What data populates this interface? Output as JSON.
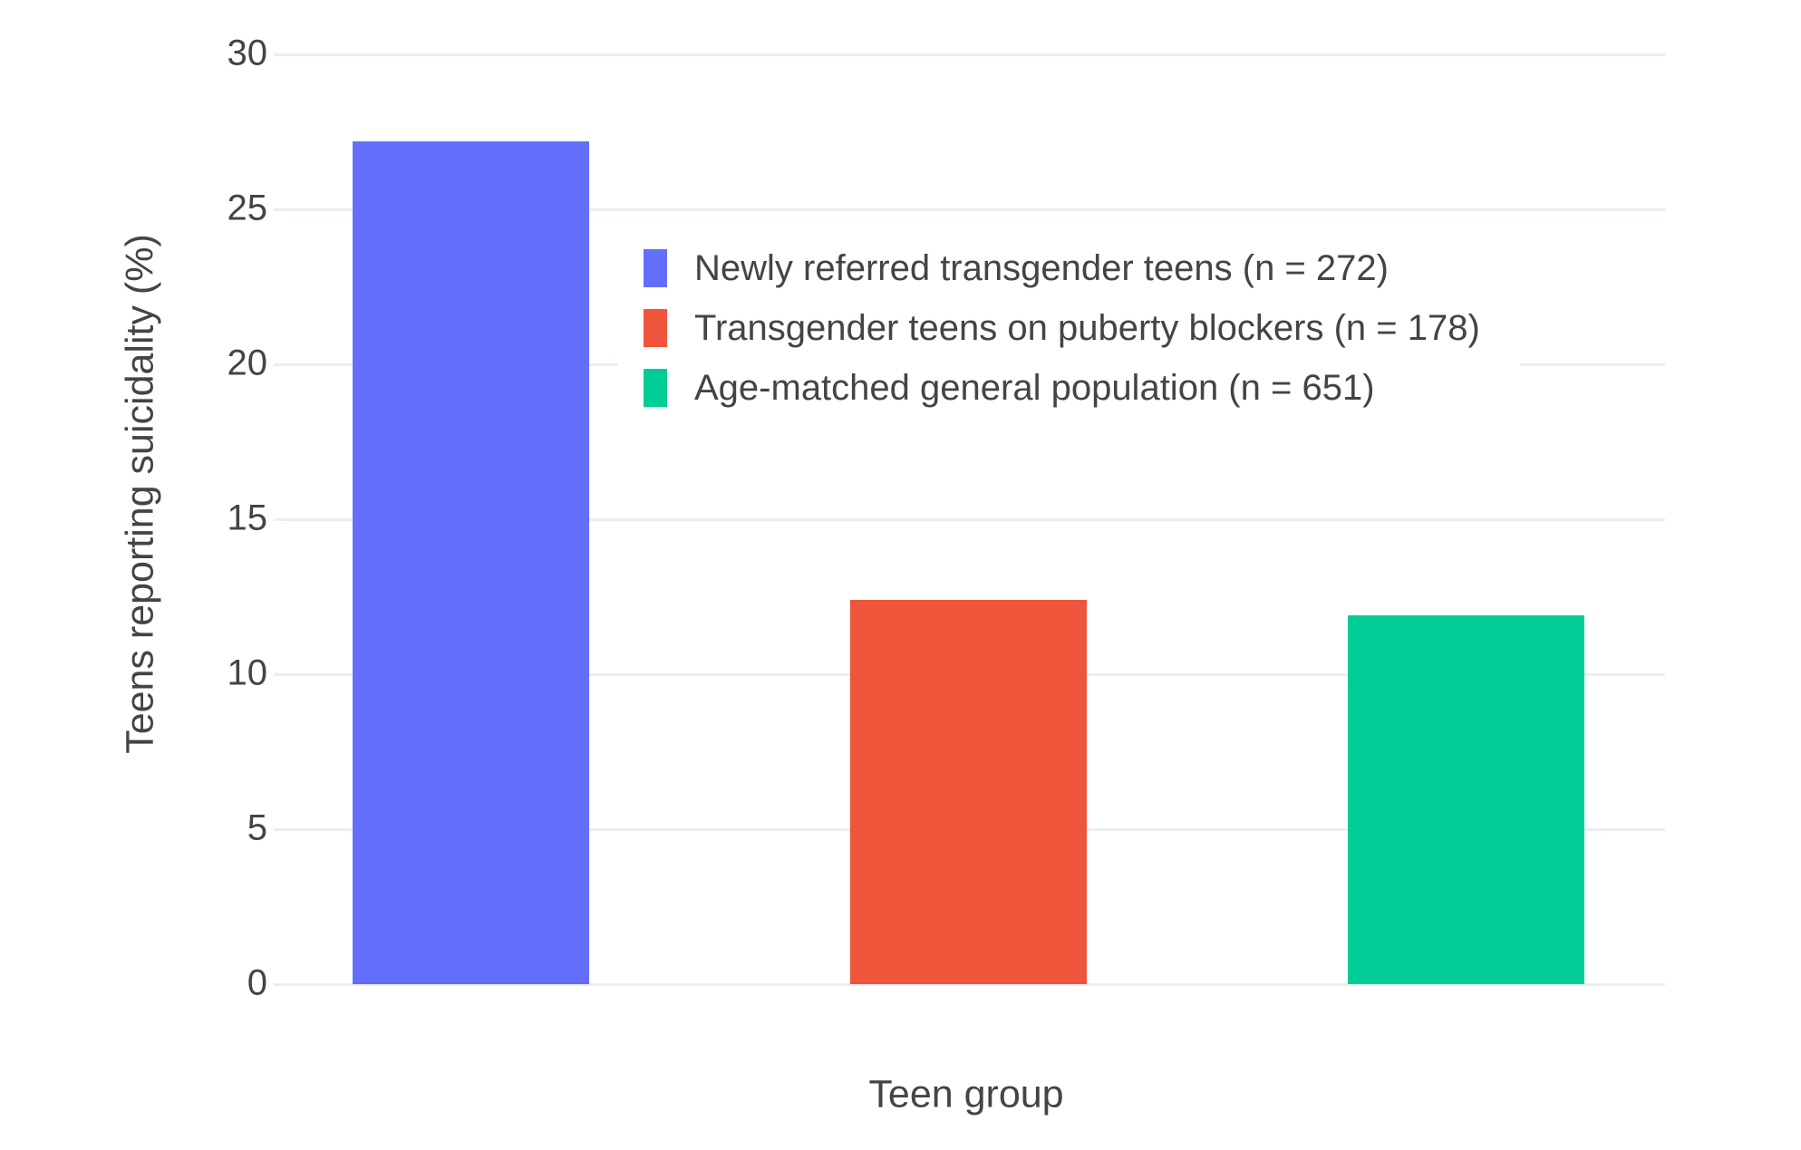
{
  "chart_data": {
    "type": "bar",
    "title": "",
    "xlabel": "Teen group",
    "ylabel": "Teens reporting suicidality (%)",
    "ylim": [
      0,
      30
    ],
    "yticks": [
      0,
      5,
      10,
      15,
      20,
      25,
      30
    ],
    "grid": true,
    "background": "#ffffff",
    "gridline_color": "#E9EDF5",
    "text_color": "#444444",
    "legend_position": "inside-top-center",
    "categories": [
      "Newly referred transgender teens",
      "Transgender teens on puberty blockers",
      "Age-matched general population"
    ],
    "series": [
      {
        "name": "Newly referred transgender teens (n = 272)",
        "n": 272,
        "value": 27.2,
        "color": "#636EFA"
      },
      {
        "name": "Transgender teens on puberty blockers (n = 178)",
        "n": 178,
        "value": 12.4,
        "color": "#EF553B"
      },
      {
        "name": "Age-matched general population (n = 651)",
        "n": 651,
        "value": 11.9,
        "color": "#00CC96"
      }
    ]
  }
}
